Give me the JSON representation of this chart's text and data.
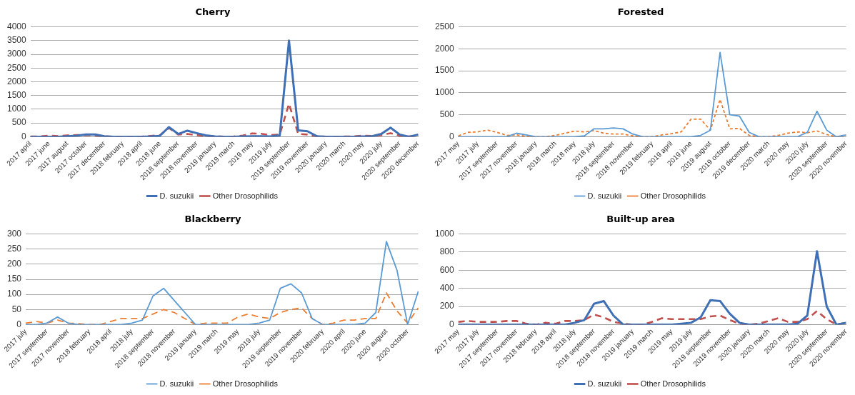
{
  "chart_data": [
    {
      "type": "line",
      "title": "Cherry",
      "categories": [
        "2017 april",
        null,
        "2017 june",
        null,
        "2017 august",
        null,
        "2017 october",
        null,
        "2017 december",
        null,
        "2018 february",
        null,
        "2018 april",
        null,
        "2018 june",
        null,
        "2018 september",
        null,
        "2018 november",
        null,
        "2019 january",
        null,
        "2019 march",
        null,
        "2019 may",
        null,
        "2019 july",
        null,
        "2019 september",
        null,
        "2019 november",
        null,
        "2020 january",
        null,
        "2020 march",
        null,
        "2020 may",
        null,
        "2020 july",
        null,
        "2020 september",
        null,
        "2020 december"
      ],
      "series": [
        {
          "name": "D. suzukii",
          "color": "#3f6fb5",
          "line_style": "solid",
          "values": [
            0,
            0,
            0,
            0,
            20,
            40,
            80,
            80,
            20,
            0,
            0,
            0,
            0,
            10,
            30,
            350,
            100,
            220,
            130,
            50,
            10,
            0,
            0,
            10,
            20,
            20,
            10,
            50,
            3500,
            230,
            200,
            20,
            0,
            0,
            0,
            0,
            10,
            20,
            100,
            330,
            80,
            0,
            80
          ]
        },
        {
          "name": "Other Drosophilids",
          "color": "#c0504d",
          "line_style": "dashed",
          "values": [
            10,
            10,
            40,
            20,
            50,
            60,
            60,
            50,
            10,
            0,
            0,
            0,
            0,
            30,
            50,
            320,
            80,
            100,
            60,
            30,
            10,
            0,
            10,
            40,
            120,
            110,
            60,
            80,
            1200,
            100,
            80,
            20,
            0,
            0,
            10,
            10,
            40,
            30,
            60,
            130,
            40,
            10,
            30
          ]
        }
      ],
      "ylim": [
        0,
        4000
      ],
      "yticks": [
        0,
        500,
        1000,
        1500,
        2000,
        2500,
        3000,
        3500,
        4000
      ],
      "grid": "y",
      "legend": "bottom",
      "marker": "none"
    },
    {
      "type": "line",
      "title": "Forested",
      "categories": [
        "2017 may",
        null,
        "2017 july",
        null,
        "2017 september",
        null,
        "2017 november",
        null,
        "2018 january",
        null,
        "2018 march",
        null,
        "2018 may",
        null,
        "2018 july",
        null,
        "2018 september",
        null,
        "2018 november",
        null,
        "2019 february",
        null,
        "2019 april",
        null,
        "2019 june",
        null,
        "2019 august",
        null,
        "2019 october",
        null,
        "2019 december",
        null,
        "2020 march",
        null,
        "2020 may",
        null,
        "2020 july",
        null,
        "2020 september",
        null,
        "2020 november"
      ],
      "series": [
        {
          "name": "D. suzukii",
          "color": "#5b9bd5",
          "line_style": "solid",
          "values": [
            0,
            0,
            0,
            0,
            0,
            0,
            80,
            40,
            0,
            0,
            0,
            0,
            0,
            20,
            180,
            180,
            200,
            180,
            60,
            0,
            0,
            0,
            0,
            0,
            0,
            30,
            150,
            1920,
            500,
            470,
            100,
            0,
            0,
            0,
            0,
            0,
            100,
            580,
            150,
            0,
            40
          ]
        },
        {
          "name": "Other Drosophilids",
          "color": "#ed7d31",
          "line_style": "dotted",
          "values": [
            20,
            100,
            110,
            150,
            100,
            30,
            40,
            10,
            0,
            0,
            30,
            80,
            130,
            110,
            140,
            80,
            60,
            60,
            20,
            0,
            0,
            40,
            70,
            110,
            400,
            400,
            150,
            850,
            180,
            190,
            30,
            0,
            0,
            30,
            80,
            110,
            90,
            130,
            50,
            0,
            40
          ]
        }
      ],
      "ylim": [
        0,
        2500
      ],
      "yticks": [
        0,
        500,
        1000,
        1500,
        2000,
        2500
      ],
      "grid": "y",
      "legend": "bottom",
      "marker": "none"
    },
    {
      "type": "line",
      "title": "Blackberry",
      "categories": [
        "2017 july",
        null,
        "2017 september",
        null,
        "2017 november",
        null,
        "2018 february",
        null,
        "2018 april",
        null,
        "2018 july",
        null,
        "2018 september",
        null,
        "2018 november",
        null,
        "2019 january",
        null,
        "2019 march",
        null,
        "2019 may",
        null,
        "2019 july",
        null,
        "2019 september",
        null,
        "2019 november",
        null,
        "2020 february",
        null,
        "2020 april",
        null,
        "2020 june",
        null,
        "2020 august",
        null,
        "2020 october",
        null
      ],
      "series": [
        {
          "name": "D. suzukii",
          "color": "#5b9bd5",
          "line_style": "solid",
          "values": [
            0,
            0,
            5,
            25,
            5,
            0,
            0,
            0,
            0,
            0,
            5,
            15,
            95,
            120,
            80,
            40,
            0,
            0,
            0,
            0,
            0,
            0,
            5,
            15,
            120,
            135,
            105,
            20,
            0,
            0,
            0,
            0,
            5,
            40,
            275,
            180,
            0,
            110
          ]
        },
        {
          "name": "Other Drosophilids",
          "color": "#ed7d31",
          "line_style": "dashed",
          "values": [
            5,
            10,
            5,
            15,
            5,
            3,
            0,
            0,
            10,
            20,
            20,
            20,
            35,
            50,
            40,
            20,
            0,
            5,
            5,
            5,
            25,
            35,
            25,
            20,
            40,
            50,
            55,
            20,
            0,
            5,
            15,
            15,
            20,
            20,
            105,
            45,
            5,
            55
          ]
        }
      ],
      "ylim": [
        0,
        300
      ],
      "yticks": [
        0,
        50,
        100,
        150,
        200,
        250,
        300
      ],
      "grid": "y",
      "legend": "bottom",
      "marker": "none"
    },
    {
      "type": "line",
      "title": "Built-up area",
      "categories": [
        "2017 may",
        null,
        "2017 july",
        null,
        "2017 september",
        null,
        "2017 november",
        null,
        "2018 february",
        null,
        "2018 april",
        null,
        "2018 july",
        null,
        "2018 september",
        null,
        "2018 november",
        null,
        "2019 january",
        null,
        "2019 march",
        null,
        "2019 may",
        null,
        "2019 july",
        null,
        "2019 september",
        null,
        "2019 november",
        null,
        "2020 january",
        null,
        "2020 march",
        null,
        "2020 may",
        null,
        "2020 july",
        null,
        "2020 september",
        null,
        "2020 november"
      ],
      "series": [
        {
          "name": "D. suzukii",
          "color": "#3f6fb5",
          "line_style": "solid",
          "values": [
            0,
            0,
            0,
            0,
            0,
            0,
            0,
            0,
            0,
            0,
            0,
            0,
            20,
            50,
            230,
            260,
            100,
            0,
            0,
            0,
            0,
            0,
            0,
            10,
            20,
            80,
            270,
            260,
            120,
            20,
            0,
            0,
            0,
            0,
            0,
            10,
            100,
            810,
            200,
            0,
            20
          ]
        },
        {
          "name": "Other Drosophilids",
          "color": "#c0504d",
          "line_style": "dashed",
          "values": [
            30,
            40,
            30,
            30,
            30,
            40,
            40,
            10,
            0,
            20,
            10,
            40,
            40,
            50,
            110,
            80,
            30,
            10,
            0,
            0,
            30,
            70,
            60,
            60,
            60,
            60,
            90,
            100,
            50,
            10,
            0,
            10,
            40,
            70,
            30,
            30,
            60,
            150,
            60,
            0,
            20
          ]
        }
      ],
      "ylim": [
        0,
        1000
      ],
      "yticks": [
        0,
        200,
        400,
        600,
        800,
        1000
      ],
      "grid": "y",
      "legend": "bottom",
      "marker": "none"
    }
  ]
}
